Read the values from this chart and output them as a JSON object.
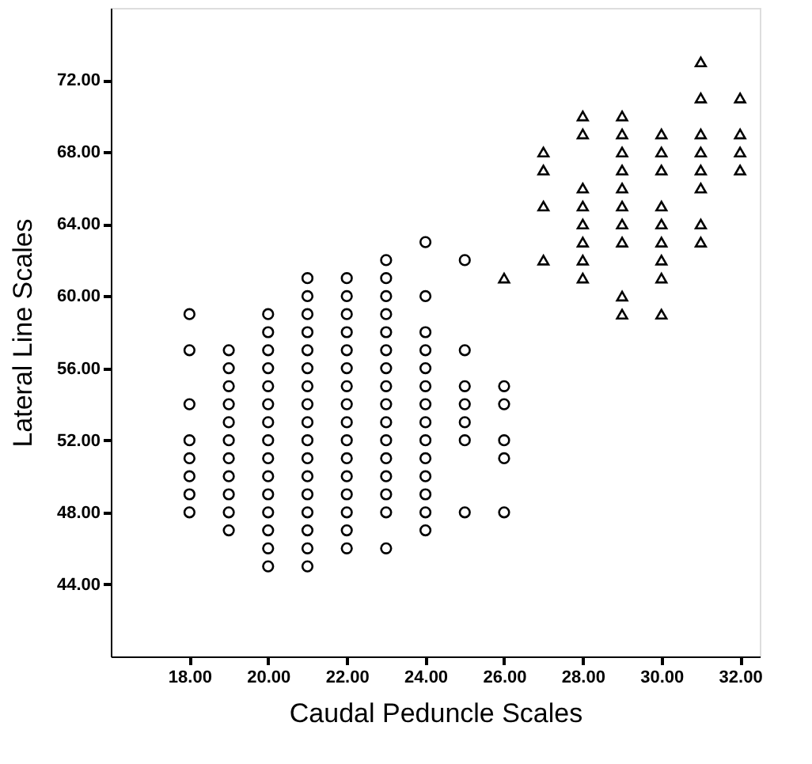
{
  "chart_data": {
    "type": "scatter",
    "xlabel": "Caudal Peduncle Scales",
    "ylabel": "Lateral Line Scales",
    "xlim": [
      16,
      32.5
    ],
    "ylim": [
      40,
      76
    ],
    "xticks": [
      {
        "value": 18,
        "label": "18.00"
      },
      {
        "value": 20,
        "label": "20.00"
      },
      {
        "value": 22,
        "label": "22.00"
      },
      {
        "value": 24,
        "label": "24.00"
      },
      {
        "value": 26,
        "label": "26.00"
      },
      {
        "value": 28,
        "label": "28.00"
      },
      {
        "value": 30,
        "label": "30.00"
      },
      {
        "value": 32,
        "label": "32.00"
      }
    ],
    "yticks": [
      {
        "value": 44,
        "label": "44.00"
      },
      {
        "value": 48,
        "label": "48.00"
      },
      {
        "value": 52,
        "label": "52.00"
      },
      {
        "value": 56,
        "label": "56.00"
      },
      {
        "value": 60,
        "label": "60.00"
      },
      {
        "value": 64,
        "label": "64.00"
      },
      {
        "value": 68,
        "label": "68.00"
      },
      {
        "value": 72,
        "label": "72.00"
      }
    ],
    "grid": false,
    "series": [
      {
        "color": "#000000",
        "marker": "circle",
        "x": [
          18,
          18,
          18,
          18,
          18,
          18,
          18,
          18,
          19,
          19,
          19,
          19,
          19,
          19,
          19,
          19,
          19,
          19,
          19,
          20,
          20,
          20,
          20,
          20,
          20,
          20,
          20,
          20,
          20,
          20,
          20,
          20,
          20,
          20,
          21,
          21,
          21,
          21,
          21,
          21,
          21,
          21,
          21,
          21,
          21,
          21,
          21,
          21,
          21,
          21,
          21,
          22,
          22,
          22,
          22,
          22,
          22,
          22,
          22,
          22,
          22,
          22,
          22,
          22,
          22,
          22,
          22,
          23,
          23,
          23,
          23,
          23,
          23,
          23,
          23,
          23,
          23,
          23,
          23,
          23,
          23,
          23,
          23,
          24,
          24,
          24,
          24,
          24,
          24,
          24,
          24,
          24,
          24,
          24,
          24,
          24,
          24,
          25,
          25,
          25,
          25,
          25,
          25,
          25,
          26,
          26,
          26,
          26,
          26
        ],
        "values": [
          59,
          57,
          54,
          52,
          51,
          50,
          49,
          48,
          57,
          56,
          55,
          54,
          53,
          52,
          51,
          50,
          49,
          48,
          47,
          59,
          58,
          57,
          56,
          55,
          54,
          53,
          52,
          51,
          50,
          49,
          48,
          47,
          46,
          45,
          61,
          60,
          59,
          58,
          57,
          56,
          55,
          54,
          53,
          52,
          51,
          50,
          49,
          48,
          47,
          46,
          45,
          61,
          60,
          59,
          58,
          57,
          56,
          55,
          54,
          53,
          52,
          51,
          50,
          49,
          48,
          47,
          46,
          62,
          61,
          60,
          59,
          58,
          57,
          56,
          55,
          54,
          53,
          52,
          51,
          50,
          49,
          48,
          46,
          63,
          60,
          58,
          57,
          56,
          55,
          54,
          53,
          52,
          51,
          50,
          49,
          48,
          47,
          62,
          57,
          55,
          54,
          53,
          52,
          48,
          55,
          54,
          52,
          51,
          48
        ]
      },
      {
        "color": "#000000",
        "marker": "triangle",
        "x": [
          26,
          27,
          27,
          27,
          27,
          28,
          28,
          28,
          28,
          28,
          28,
          28,
          28,
          29,
          29,
          29,
          29,
          29,
          29,
          29,
          29,
          29,
          29,
          30,
          30,
          30,
          30,
          30,
          30,
          30,
          30,
          30,
          31,
          31,
          31,
          31,
          31,
          31,
          31,
          31,
          32,
          32,
          32,
          32
        ],
        "values": [
          61,
          68,
          67,
          65,
          62,
          70,
          69,
          66,
          65,
          64,
          63,
          62,
          61,
          70,
          69,
          68,
          67,
          66,
          65,
          64,
          63,
          60,
          59,
          69,
          68,
          67,
          65,
          64,
          63,
          62,
          61,
          59,
          73,
          71,
          69,
          68,
          67,
          66,
          64,
          63,
          71,
          69,
          68,
          67
        ]
      }
    ]
  }
}
